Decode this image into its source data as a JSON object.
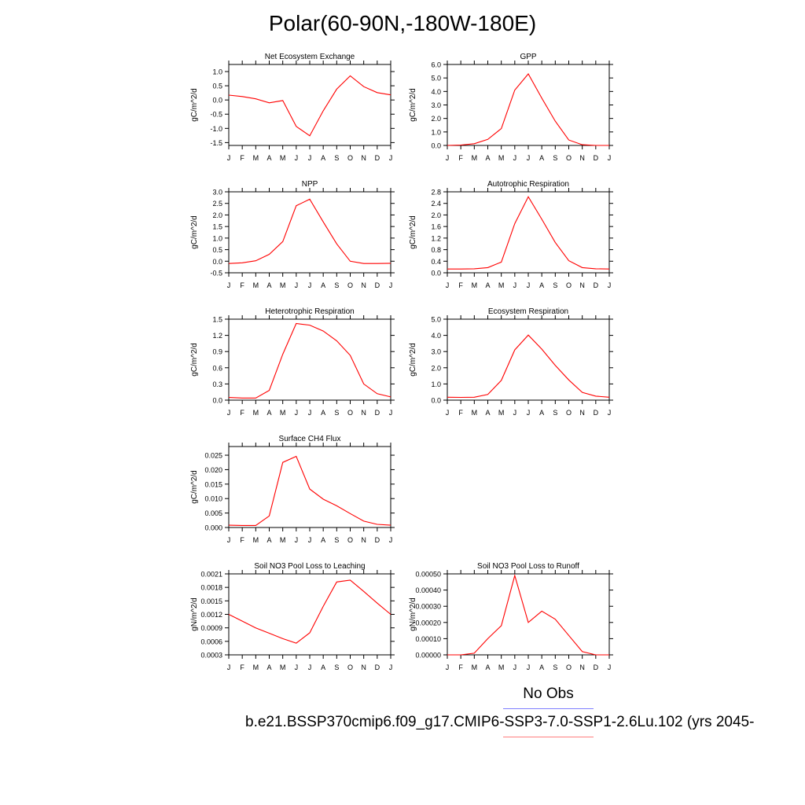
{
  "figure": {
    "title": "Polar(60-90N,-180W-180E)",
    "legend": {
      "obs_label": "No Obs",
      "obs_color": "#7f7fff",
      "model_label": "b.e21.BSSP370cmip6.f09_g17.CMIP6-SSP3-7.0-SSP1-2.6Lu.102 (yrs 2045-",
      "model_color": "#ff7f7f"
    }
  },
  "chart_data": [
    {
      "type": "line",
      "title": "Net Ecosystem Exchange",
      "ylabel": "gC/m^2/d",
      "ylim": [
        -1.6,
        1.25
      ],
      "yticks": [
        -1.5,
        -1.0,
        -0.5,
        0.0,
        0.5,
        1.0
      ],
      "ytick_labels": [
        "-1.5",
        "-1.0",
        "-0.5",
        "0.0",
        "0.5",
        "1.0"
      ],
      "xticks": [
        "J",
        "F",
        "M",
        "A",
        "M",
        "J",
        "J",
        "A",
        "S",
        "O",
        "N",
        "D",
        "J"
      ],
      "series": [
        {
          "color": "#ff0000",
          "values": [
            0.17,
            0.12,
            0.04,
            -0.1,
            -0.02,
            -0.93,
            -1.26,
            -0.38,
            0.38,
            0.85,
            0.47,
            0.26,
            0.18
          ]
        }
      ]
    },
    {
      "type": "line",
      "title": "GPP",
      "ylabel": "gC/m^2/d",
      "ylim": [
        0,
        6
      ],
      "yticks": [
        0,
        1,
        2,
        3,
        4,
        5,
        6
      ],
      "ytick_labels": [
        "0.0",
        "1.0",
        "2.0",
        "3.0",
        "4.0",
        "5.0",
        "6.0"
      ],
      "xticks": [
        "J",
        "F",
        "M",
        "A",
        "M",
        "J",
        "J",
        "A",
        "S",
        "O",
        "N",
        "D",
        "J"
      ],
      "series": [
        {
          "color": "#ff0000",
          "values": [
            0.0,
            0.03,
            0.13,
            0.45,
            1.25,
            4.1,
            5.3,
            3.5,
            1.8,
            0.4,
            0.05,
            0.0,
            0.0
          ]
        }
      ]
    },
    {
      "type": "line",
      "title": "NPP",
      "ylabel": "gC/m^2/d",
      "ylim": [
        -0.5,
        3.0
      ],
      "yticks": [
        -0.5,
        0.0,
        0.5,
        1.0,
        1.5,
        2.0,
        2.5,
        3.0
      ],
      "ytick_labels": [
        "-0.5",
        "0.0",
        "0.5",
        "1.0",
        "1.5",
        "2.0",
        "2.5",
        "3.0"
      ],
      "xticks": [
        "J",
        "F",
        "M",
        "A",
        "M",
        "J",
        "J",
        "A",
        "S",
        "O",
        "N",
        "D",
        "J"
      ],
      "series": [
        {
          "color": "#ff0000",
          "values": [
            -0.1,
            -0.07,
            0.02,
            0.3,
            0.85,
            2.4,
            2.68,
            1.7,
            0.75,
            0.0,
            -0.1,
            -0.1,
            -0.09
          ]
        }
      ]
    },
    {
      "type": "line",
      "title": "Autotrophic Respiration",
      "ylabel": "gC/m^2/d",
      "ylim": [
        0,
        2.8
      ],
      "yticks": [
        0,
        0.4,
        0.8,
        1.2,
        1.6,
        2.0,
        2.4,
        2.8
      ],
      "ytick_labels": [
        "0.0",
        "0.4",
        "0.8",
        "1.2",
        "1.6",
        "2.0",
        "2.4",
        "2.8"
      ],
      "xticks": [
        "J",
        "F",
        "M",
        "A",
        "M",
        "J",
        "J",
        "A",
        "S",
        "O",
        "N",
        "D",
        "J"
      ],
      "series": [
        {
          "color": "#ff0000",
          "values": [
            0.13,
            0.13,
            0.14,
            0.18,
            0.37,
            1.7,
            2.63,
            1.85,
            1.05,
            0.42,
            0.18,
            0.14,
            0.13
          ]
        }
      ]
    },
    {
      "type": "line",
      "title": "Heterotrophic Respiration",
      "ylabel": "gC/m^2/d",
      "ylim": [
        0,
        1.5
      ],
      "yticks": [
        0,
        0.3,
        0.6,
        0.9,
        1.2,
        1.5
      ],
      "ytick_labels": [
        "0.0",
        "0.3",
        "0.6",
        "0.9",
        "1.2",
        "1.5"
      ],
      "xticks": [
        "J",
        "F",
        "M",
        "A",
        "M",
        "J",
        "J",
        "A",
        "S",
        "O",
        "N",
        "D",
        "J"
      ],
      "series": [
        {
          "color": "#ff0000",
          "values": [
            0.05,
            0.04,
            0.04,
            0.18,
            0.85,
            1.42,
            1.39,
            1.28,
            1.1,
            0.83,
            0.3,
            0.12,
            0.06
          ]
        }
      ]
    },
    {
      "type": "line",
      "title": "Ecosystem Respiration",
      "ylabel": "gC/m^2/d",
      "ylim": [
        0,
        5
      ],
      "yticks": [
        0,
        1,
        2,
        3,
        4,
        5
      ],
      "ytick_labels": [
        "0.0",
        "1.0",
        "2.0",
        "3.0",
        "4.0",
        "5.0"
      ],
      "xticks": [
        "J",
        "F",
        "M",
        "A",
        "M",
        "J",
        "J",
        "A",
        "S",
        "O",
        "N",
        "D",
        "J"
      ],
      "series": [
        {
          "color": "#ff0000",
          "values": [
            0.18,
            0.17,
            0.18,
            0.35,
            1.22,
            3.1,
            4.02,
            3.15,
            2.15,
            1.25,
            0.48,
            0.25,
            0.18
          ]
        }
      ]
    },
    {
      "type": "line",
      "title": "Surface CH4 Flux",
      "ylabel": "gC/m^2/d",
      "ylim": [
        0,
        0.028
      ],
      "yticks": [
        0,
        0.005,
        0.01,
        0.015,
        0.02,
        0.025
      ],
      "ytick_labels": [
        "0.000",
        "0.005",
        "0.010",
        "0.015",
        "0.020",
        "0.025"
      ],
      "xticks": [
        "J",
        "F",
        "M",
        "A",
        "M",
        "J",
        "J",
        "A",
        "S",
        "O",
        "N",
        "D",
        "J"
      ],
      "series": [
        {
          "color": "#ff0000",
          "values": [
            0.0008,
            0.0007,
            0.0007,
            0.004,
            0.0225,
            0.0246,
            0.0133,
            0.0098,
            0.0075,
            0.0048,
            0.0022,
            0.0011,
            0.0008
          ]
        }
      ]
    },
    {
      "type": "line",
      "title": "Soil NO3 Pool Loss to Leaching",
      "ylabel": "gN/m^2/d",
      "ylim": [
        0.0003,
        0.0021
      ],
      "yticks": [
        0.0003,
        0.0006,
        0.0009,
        0.0012,
        0.0015,
        0.0018,
        0.0021
      ],
      "ytick_labels": [
        "0.0003",
        "0.0006",
        "0.0009",
        "0.0012",
        "0.0015",
        "0.0018",
        "0.0021"
      ],
      "xticks": [
        "J",
        "F",
        "M",
        "A",
        "M",
        "J",
        "J",
        "A",
        "S",
        "O",
        "N",
        "D",
        "J"
      ],
      "series": [
        {
          "color": "#ff0000",
          "values": [
            0.0012,
            0.00105,
            0.0009,
            0.00078,
            0.00066,
            0.00056,
            0.00079,
            0.00138,
            0.00192,
            0.00196,
            0.00171,
            0.00145,
            0.0012
          ]
        }
      ]
    },
    {
      "type": "line",
      "title": "Soil NO3 Pool Loss to Runoff",
      "ylabel": "gN/m^2/d",
      "ylim": [
        0,
        0.0005
      ],
      "yticks": [
        0,
        0.0001,
        0.0002,
        0.0003,
        0.0004,
        0.0005
      ],
      "ytick_labels": [
        "0.00000",
        "0.00010",
        "0.00020",
        "0.00030",
        "0.00040",
        "0.00050"
      ],
      "xticks": [
        "J",
        "F",
        "M",
        "A",
        "M",
        "J",
        "J",
        "A",
        "S",
        "O",
        "N",
        "D",
        "J"
      ],
      "series": [
        {
          "color": "#ff0000",
          "values": [
            0.0,
            0.0,
            1e-05,
            0.0001,
            0.00018,
            0.00049,
            0.0002,
            0.00027,
            0.00022,
            0.00012,
            2e-05,
            0.0,
            0.0
          ]
        }
      ]
    }
  ]
}
